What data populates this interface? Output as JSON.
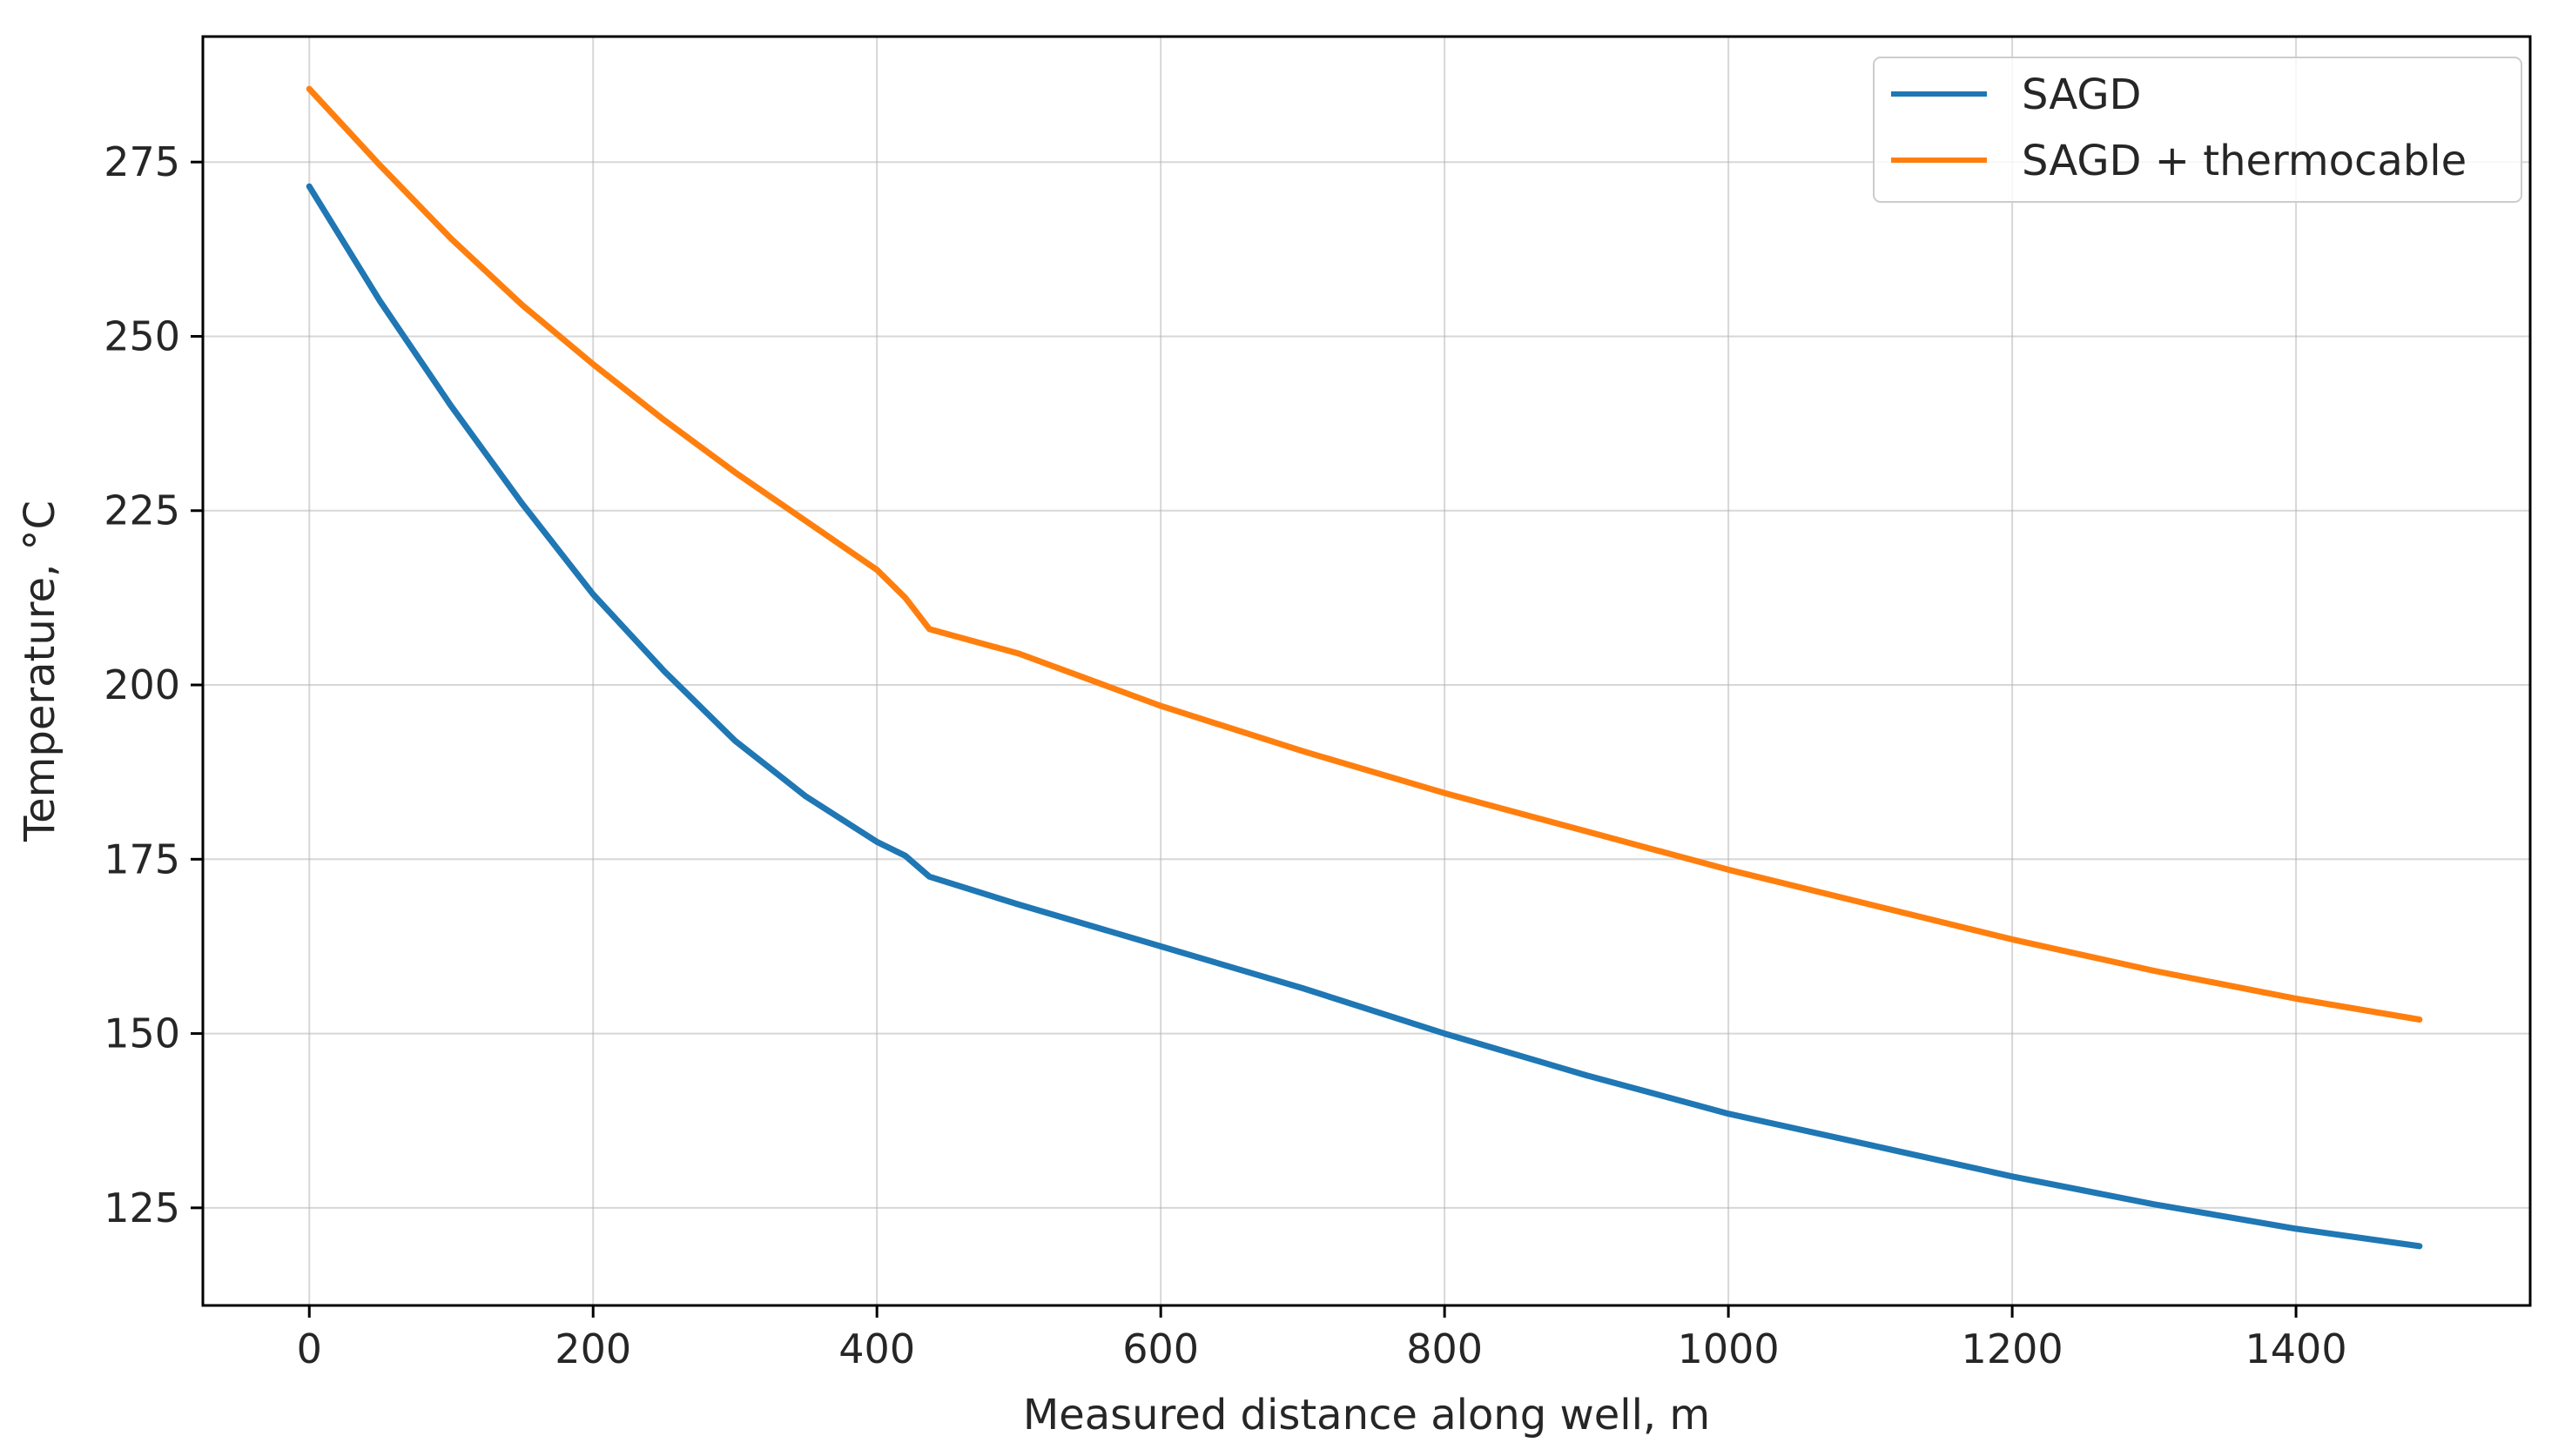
{
  "chart_data": {
    "type": "line",
    "title": "",
    "xlabel": "Measured distance along well, m",
    "ylabel": "Temperature, °C",
    "xlim": [
      -75,
      1565
    ],
    "ylim": [
      111,
      293
    ],
    "xticks": [
      0,
      200,
      400,
      600,
      800,
      1000,
      1200,
      1400
    ],
    "yticks": [
      125,
      150,
      175,
      200,
      225,
      250,
      275
    ],
    "xtick_labels": [
      "0",
      "200",
      "400",
      "600",
      "800",
      "1000",
      "1200",
      "1400"
    ],
    "ytick_labels": [
      "125",
      "150",
      "175",
      "200",
      "225",
      "250",
      "275"
    ],
    "grid": true,
    "legend_position": "top-right",
    "series": [
      {
        "name": "SAGD",
        "color": "#1f77b4",
        "x": [
          0,
          50,
          100,
          150,
          200,
          250,
          300,
          350,
          400,
          420,
          437,
          500,
          600,
          700,
          800,
          900,
          1000,
          1100,
          1200,
          1300,
          1400,
          1487
        ],
        "y": [
          271.5,
          255,
          240,
          226,
          213,
          202,
          192,
          184,
          177.5,
          175.5,
          172.5,
          168.5,
          162.5,
          156.5,
          150,
          144,
          138.5,
          134,
          129.5,
          125.5,
          122,
          119.5
        ]
      },
      {
        "name": "SAGD + thermocable",
        "color": "#ff7f0e",
        "x": [
          0,
          50,
          100,
          150,
          200,
          250,
          300,
          350,
          400,
          420,
          437,
          500,
          600,
          700,
          800,
          900,
          1000,
          1100,
          1200,
          1300,
          1400,
          1487
        ],
        "y": [
          285.5,
          274.5,
          264,
          254.5,
          246,
          238,
          230.5,
          223.5,
          216.5,
          212.5,
          208,
          204.5,
          197,
          190.5,
          184.5,
          179,
          173.5,
          168.5,
          163.5,
          159,
          155,
          152
        ]
      }
    ]
  }
}
